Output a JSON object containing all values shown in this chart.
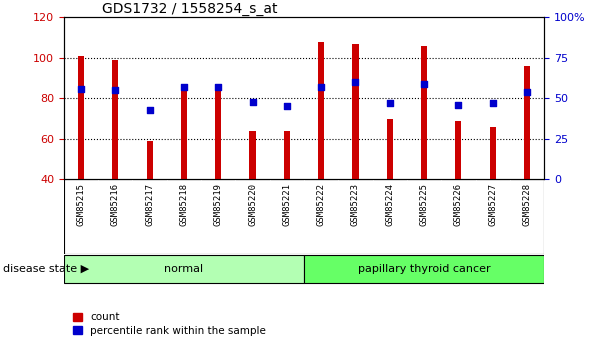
{
  "title": "GDS1732 / 1558254_s_at",
  "samples": [
    "GSM85215",
    "GSM85216",
    "GSM85217",
    "GSM85218",
    "GSM85219",
    "GSM85220",
    "GSM85221",
    "GSM85222",
    "GSM85223",
    "GSM85224",
    "GSM85225",
    "GSM85226",
    "GSM85227",
    "GSM85228"
  ],
  "counts": [
    101,
    99,
    59,
    84,
    85,
    64,
    64,
    108,
    107,
    70,
    106,
    69,
    66,
    96
  ],
  "percentiles": [
    56,
    55,
    43,
    57,
    57,
    48,
    45,
    57,
    60,
    47,
    59,
    46,
    47,
    54
  ],
  "ylim_left": [
    40,
    120
  ],
  "ylim_right": [
    0,
    100
  ],
  "yticks_left": [
    40,
    60,
    80,
    100,
    120
  ],
  "yticks_right": [
    0,
    25,
    50,
    75,
    100
  ],
  "bar_color": "#cc0000",
  "dot_color": "#0000cc",
  "groups": [
    {
      "label": "normal",
      "start": 0,
      "end": 7,
      "color": "#b3ffb3"
    },
    {
      "label": "papillary thyroid cancer",
      "start": 7,
      "end": 14,
      "color": "#66ff66"
    }
  ],
  "disease_state_label": "disease state",
  "legend_items": [
    {
      "label": "count",
      "color": "#cc0000"
    },
    {
      "label": "percentile rank within the sample",
      "color": "#0000cc"
    }
  ],
  "fig_bg": "#ffffff",
  "plot_bg": "#ffffff",
  "xtick_bg": "#c8c8c8",
  "bar_width": 0.18,
  "dot_size": 18
}
